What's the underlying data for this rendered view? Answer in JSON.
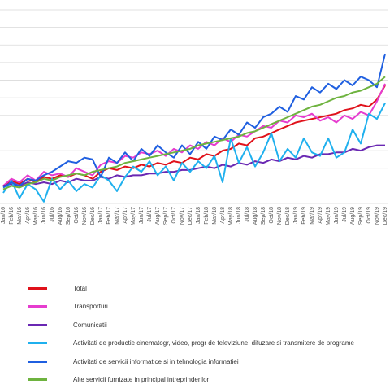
{
  "chart_data": {
    "type": "line",
    "title": "",
    "xlabel": "",
    "ylabel": "",
    "grid": true,
    "legend_position": "bottom",
    "ylim": [
      90,
      200
    ],
    "yticks": [
      90,
      100,
      110,
      120,
      130,
      140,
      150,
      160,
      170,
      180,
      190,
      200
    ],
    "categories": [
      "Jan/16",
      "Feb/16",
      "Mar/16",
      "Apr/16",
      "May/16",
      "Jun/16",
      "Jul/16",
      "Aug/16",
      "Sep/16",
      "Oct/16",
      "Nov/16",
      "Dec/16",
      "Jan/17",
      "Feb/17",
      "Mar/17",
      "Apr/17",
      "May/17",
      "Jun/17",
      "Jul/17",
      "Aug/17",
      "Sep/17",
      "Oct/17",
      "Nov/17",
      "Dec/17",
      "Jan/18",
      "Feb/18",
      "Mar/18",
      "Apr/18",
      "May/18",
      "Jun/18",
      "Jul/18",
      "Aug/18",
      "Sep/18",
      "Oct/18",
      "Nov/18",
      "Dec/18",
      "Jan/19",
      "Feb/19",
      "Mar/19",
      "Apr/19",
      "May/19",
      "Jun/19",
      "Jul/19",
      "Aug/19",
      "Sep/19",
      "Oct/19",
      "Nov/19",
      "Dec/19"
    ],
    "tick_labels": [
      "Jan/16",
      "Feb/16",
      "Mar/16",
      "Apr/16",
      "May/16",
      "Jun/16",
      "Jul/16",
      "Aug/16",
      "Sep/16",
      "Oct/16",
      "Nov/16",
      "Dec/16",
      "Jan/17",
      "Feb/17",
      "Mar/17",
      "Apr/17",
      "May/17",
      "Jun/17",
      "Jul/17",
      "Aug/17",
      "Sep/17",
      "Oct/17",
      "Nov/17",
      "Dec/17",
      "Jan/18",
      "Feb/18",
      "Mar/18",
      "Apr/18",
      "May/18",
      "Jun/18",
      "Jul/18",
      "Aug/18",
      "Sep/18",
      "Oct/18",
      "Nov/18",
      "Dec/18",
      "Jan/19",
      "Feb/19",
      "Mar/19",
      "Apr/19",
      "May/19",
      "Jun/19",
      "Jul/19",
      "Aug/19",
      "Sep/19",
      "Oct/19",
      "Nov/19",
      "Dec/19"
    ],
    "series": [
      {
        "name": "Total",
        "color": "#e0121b",
        "values": [
          100,
          103,
          101,
          104,
          102,
          105,
          104,
          106,
          105,
          107,
          106,
          104,
          108,
          110,
          109,
          111,
          110,
          112,
          111,
          113,
          112,
          114,
          113,
          116,
          115,
          118,
          117,
          120,
          121,
          124,
          123,
          127,
          128,
          130,
          132,
          134,
          136,
          137,
          138,
          139,
          140,
          141,
          143,
          144,
          146,
          145,
          149,
          157
        ]
      },
      {
        "name": "Transporturi",
        "color": "#e63ccf",
        "values": [
          100,
          104,
          102,
          106,
          103,
          108,
          106,
          107,
          105,
          110,
          108,
          106,
          112,
          114,
          113,
          117,
          116,
          119,
          118,
          120,
          117,
          121,
          119,
          123,
          121,
          125,
          123,
          127,
          125,
          129,
          128,
          131,
          134,
          133,
          137,
          136,
          140,
          139,
          141,
          137,
          139,
          136,
          140,
          138,
          142,
          140,
          148,
          158
        ]
      },
      {
        "name": "Comunicatii",
        "color": "#6a28b3",
        "values": [
          100,
          101,
          100,
          102,
          101,
          102,
          101,
          103,
          102,
          104,
          103,
          103,
          105,
          104,
          106,
          105,
          106,
          106,
          107,
          107,
          108,
          108,
          109,
          109,
          110,
          111,
          110,
          112,
          111,
          113,
          112,
          114,
          113,
          115,
          114,
          116,
          115,
          117,
          116,
          118,
          118,
          119,
          119,
          121,
          120,
          122,
          123,
          123
        ]
      },
      {
        "name": "Activitati de productie cinematogr, video, progr de televiziune; difuzare si transmitere de programe",
        "color": "#1fb0ee",
        "values": [
          96,
          103,
          93,
          101,
          98,
          91,
          104,
          98,
          103,
          97,
          101,
          99,
          106,
          103,
          97,
          105,
          111,
          108,
          114,
          106,
          111,
          103,
          113,
          108,
          114,
          110,
          117,
          102,
          127,
          113,
          122,
          111,
          119,
          130,
          114,
          121,
          116,
          127,
          119,
          117,
          127,
          116,
          119,
          132,
          124,
          141,
          138,
          147
        ]
      },
      {
        "name": "Activitati de servicii informatice si in tehnologia informatiei",
        "color": "#1f5fe0",
        "values": [
          99,
          102,
          100,
          104,
          103,
          106,
          108,
          111,
          114,
          113,
          116,
          115,
          105,
          116,
          113,
          119,
          114,
          121,
          117,
          123,
          119,
          116,
          123,
          118,
          125,
          121,
          128,
          126,
          132,
          129,
          136,
          133,
          139,
          141,
          145,
          142,
          151,
          149,
          156,
          153,
          158,
          155,
          160,
          157,
          162,
          160,
          156,
          175
        ]
      },
      {
        "name": "Alte servicii furnizate in principal intreprinderilor",
        "color": "#6eb33f",
        "values": [
          98,
          100,
          99,
          101,
          102,
          104,
          103,
          105,
          106,
          107,
          106,
          108,
          109,
          110,
          111,
          113,
          114,
          115,
          116,
          117,
          118,
          119,
          120,
          121,
          123,
          124,
          125,
          126,
          127,
          128,
          130,
          131,
          133,
          135,
          137,
          139,
          141,
          143,
          145,
          146,
          148,
          150,
          151,
          153,
          154,
          156,
          158,
          162
        ]
      }
    ]
  }
}
